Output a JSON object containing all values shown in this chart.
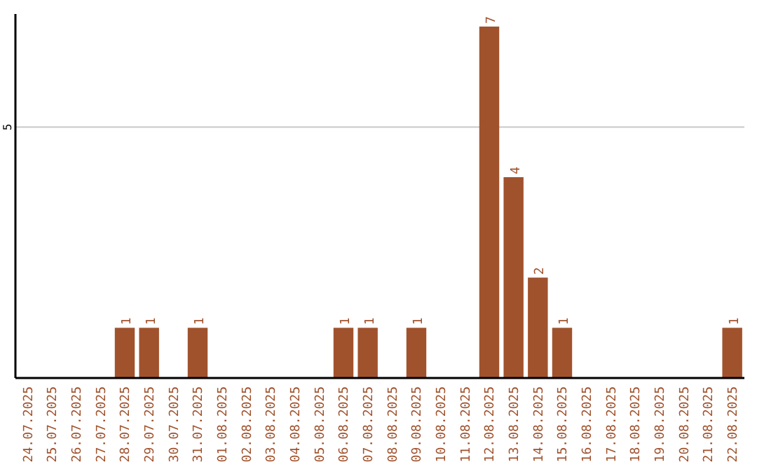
{
  "chart_data": {
    "type": "bar",
    "categories": [
      "24.07.2025",
      "25.07.2025",
      "26.07.2025",
      "27.07.2025",
      "28.07.2025",
      "29.07.2025",
      "30.07.2025",
      "31.07.2025",
      "01.08.2025",
      "02.08.2025",
      "03.08.2025",
      "04.08.2025",
      "05.08.2025",
      "06.08.2025",
      "07.08.2025",
      "08.08.2025",
      "09.08.2025",
      "10.08.2025",
      "11.08.2025",
      "12.08.2025",
      "13.08.2025",
      "14.08.2025",
      "15.08.2025",
      "16.08.2025",
      "17.08.2025",
      "18.08.2025",
      "19.08.2025",
      "20.08.2025",
      "21.08.2025",
      "22.08.2025"
    ],
    "values": [
      0,
      0,
      0,
      0,
      1,
      1,
      0,
      1,
      0,
      0,
      0,
      0,
      0,
      1,
      1,
      0,
      1,
      0,
      0,
      7,
      4,
      2,
      1,
      0,
      0,
      0,
      0,
      0,
      0,
      1
    ],
    "color": "#a0522d",
    "value_labels": [
      null,
      null,
      null,
      null,
      "1",
      "1",
      null,
      "1",
      null,
      null,
      null,
      null,
      null,
      "1",
      "1",
      null,
      "1",
      null,
      null,
      "7",
      "4",
      "2",
      "1",
      null,
      null,
      null,
      null,
      null,
      null,
      "1"
    ],
    "ylim": [
      0,
      7.25
    ],
    "yticks": [
      5
    ],
    "grid": "y"
  }
}
